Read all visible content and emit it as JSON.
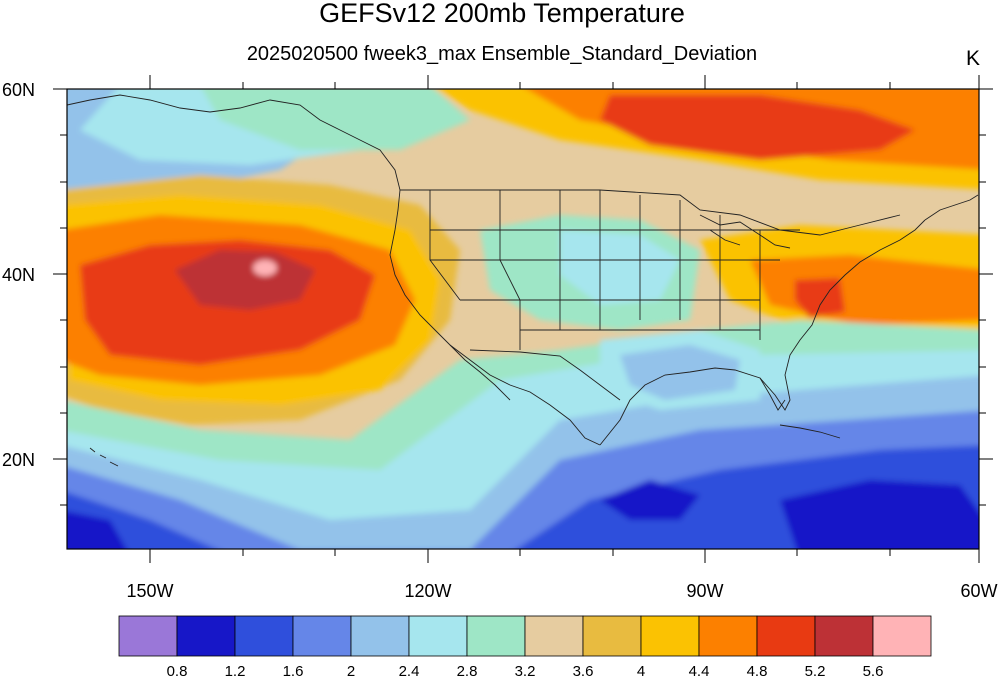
{
  "title": "GEFSv12 200mb Temperature",
  "subtitle": "2025020500 fweek3_max Ensemble_Standard_Deviation",
  "units": "K",
  "lat_labels": [
    "60N",
    "40N",
    "20N"
  ],
  "lon_labels": [
    "150W",
    "120W",
    "90W",
    "60W"
  ],
  "map": {
    "lon_range": [
      -159,
      -60
    ],
    "lat_range": [
      10,
      60
    ],
    "projection": "cylindrical-equidistant",
    "boundaries": "US states, Canada, Mexico coastlines"
  },
  "colorbar": {
    "levels": [
      "0.8",
      "1.2",
      "1.6",
      "2",
      "2.4",
      "2.8",
      "3.2",
      "3.6",
      "4",
      "4.4",
      "4.8",
      "5.2",
      "5.6"
    ],
    "colors": [
      "#9a77d8",
      "#1717c8",
      "#2f4fdc",
      "#6586e8",
      "#93c2ea",
      "#a6e6ee",
      "#9ee6c6",
      "#e6cca0",
      "#e8bb40",
      "#fbc202",
      "#fc8000",
      "#e83a12",
      "#bd3136",
      "#ffb3b6"
    ]
  }
}
